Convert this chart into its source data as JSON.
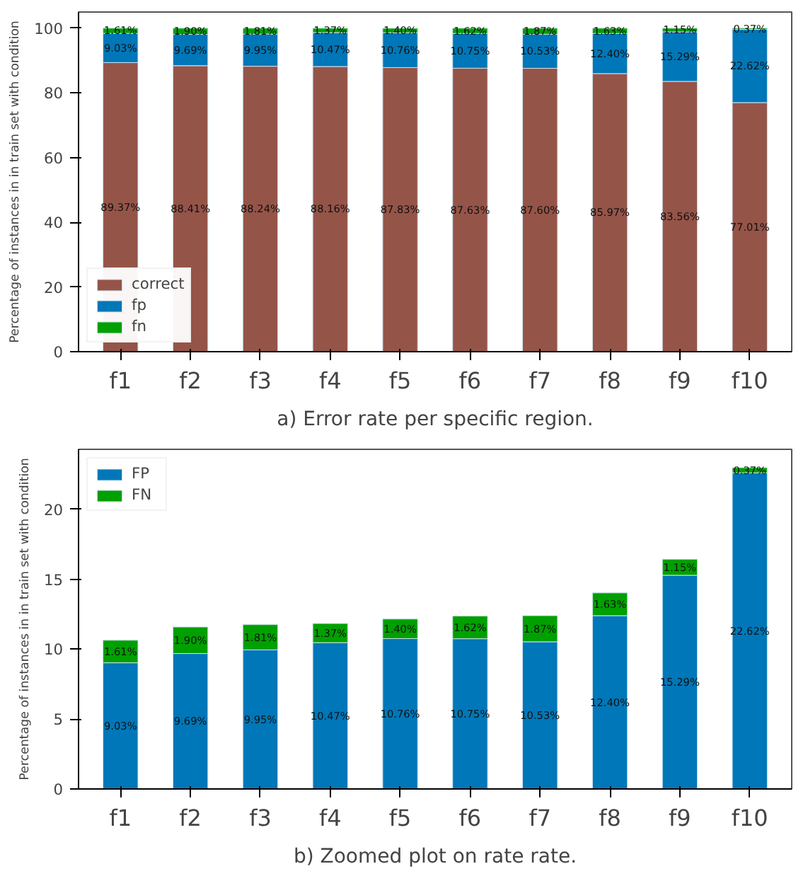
{
  "chart_data": [
    {
      "type": "bar",
      "stacked": true,
      "ylabel": "Percentage of instances in in train set with condition",
      "categories": [
        "f1",
        "f2",
        "f3",
        "f4",
        "f5",
        "f6",
        "f7",
        "f8",
        "f9",
        "f10"
      ],
      "ylim": [
        0,
        105
      ],
      "yticks": [
        0,
        20,
        40,
        60,
        80,
        100
      ],
      "grid": false,
      "legend": "bottom left",
      "annotations": [
        "a) Error rate per specific region."
      ],
      "series": [
        {
          "name": "correct",
          "color": "#955448",
          "values": [
            89.37,
            88.41,
            88.24,
            88.16,
            87.83,
            87.63,
            87.6,
            85.97,
            83.56,
            77.01
          ],
          "value_labels": [
            "89.37%",
            "88.41%",
            "88.24%",
            "88.16%",
            "87.83%",
            "87.63%",
            "87.60%",
            "85.97%",
            "83.56%",
            "77.01%"
          ]
        },
        {
          "name": "fp",
          "color": "#0077b8",
          "values": [
            9.03,
            9.69,
            9.95,
            10.47,
            10.76,
            10.75,
            10.53,
            12.4,
            15.29,
            22.62
          ],
          "value_labels": [
            "9.03%",
            "9.69%",
            "9.95%",
            "10.47%",
            "10.76%",
            "10.75%",
            "10.53%",
            "12.40%",
            "15.29%",
            "22.62%"
          ]
        },
        {
          "name": "fn",
          "color": "#00a000",
          "values": [
            1.61,
            1.9,
            1.81,
            1.37,
            1.4,
            1.62,
            1.87,
            1.63,
            1.15,
            0.37
          ],
          "value_labels": [
            "1.61%",
            "1.90%",
            "1.81%",
            "1.37%",
            "1.40%",
            "1.62%",
            "1.87%",
            "1.63%",
            "1.15%",
            "0.37%"
          ]
        }
      ]
    },
    {
      "type": "bar",
      "stacked": true,
      "ylabel": "Percentage of instances in in train set with condition",
      "categories": [
        "f1",
        "f2",
        "f3",
        "f4",
        "f5",
        "f6",
        "f7",
        "f8",
        "f9",
        "f10"
      ],
      "ylim": [
        0,
        24.3
      ],
      "yticks": [
        0,
        5,
        10,
        15,
        20
      ],
      "grid": false,
      "legend": "top left",
      "annotations": [
        "b) Zoomed plot on rate rate."
      ],
      "series": [
        {
          "name": "FP",
          "color": "#0077b8",
          "values": [
            9.03,
            9.69,
            9.95,
            10.47,
            10.76,
            10.75,
            10.53,
            12.4,
            15.29,
            22.62
          ],
          "value_labels": [
            "9.03%",
            "9.69%",
            "9.95%",
            "10.47%",
            "10.76%",
            "10.75%",
            "10.53%",
            "12.40%",
            "15.29%",
            "22.62%"
          ]
        },
        {
          "name": "FN",
          "color": "#00a000",
          "values": [
            1.61,
            1.9,
            1.81,
            1.37,
            1.4,
            1.62,
            1.87,
            1.63,
            1.15,
            0.37
          ],
          "value_labels": [
            "1.61%",
            "1.90%",
            "1.81%",
            "1.37%",
            "1.40%",
            "1.62%",
            "1.87%",
            "1.63%",
            "1.15%",
            "0.37%"
          ]
        }
      ]
    }
  ]
}
